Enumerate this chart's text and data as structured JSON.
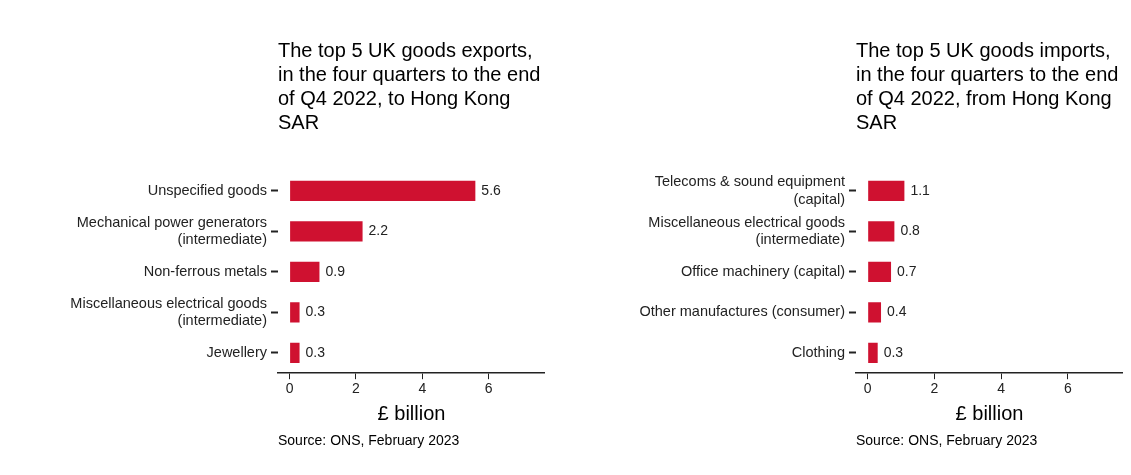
{
  "chart_data": [
    {
      "type": "bar",
      "orientation": "horizontal",
      "title": "The top 5 UK goods exports, in the four quarters to the end of Q4 2022, to Hong Kong SAR",
      "xlabel": "£ billion",
      "categories": [
        "Unspecified goods",
        "Mechanical power generators (intermediate)",
        "Non-ferrous metals",
        "Miscellaneous electrical goods (intermediate)",
        "Jewellery"
      ],
      "values": [
        5.6,
        2.2,
        0.9,
        0.3,
        0.3
      ],
      "color": "#cf1130",
      "xlim": [
        -0.35,
        7.7
      ],
      "xticks": [
        0,
        2,
        4,
        6
      ],
      "data_labels": true,
      "annotations": [
        "Source: ONS, February 2023"
      ]
    },
    {
      "type": "bar",
      "orientation": "horizontal",
      "title": "The top 5 UK goods imports, in the four quarters to the end of Q4 2022, from Hong Kong SAR",
      "xlabel": "£ billion",
      "categories": [
        "Telecoms & sound equipment (capital)",
        "Miscellaneous electrical goods (intermediate)",
        "Office machinery (capital)",
        "Other manufactures (consumer)",
        "Clothing"
      ],
      "values": [
        1.1,
        0.8,
        0.7,
        0.4,
        0.3
      ],
      "color": "#cf1130",
      "xlim": [
        -0.35,
        7.65
      ],
      "xticks": [
        0,
        2,
        4,
        6
      ],
      "data_labels": true,
      "annotations": [
        "Source: ONS, February 2023"
      ]
    }
  ]
}
